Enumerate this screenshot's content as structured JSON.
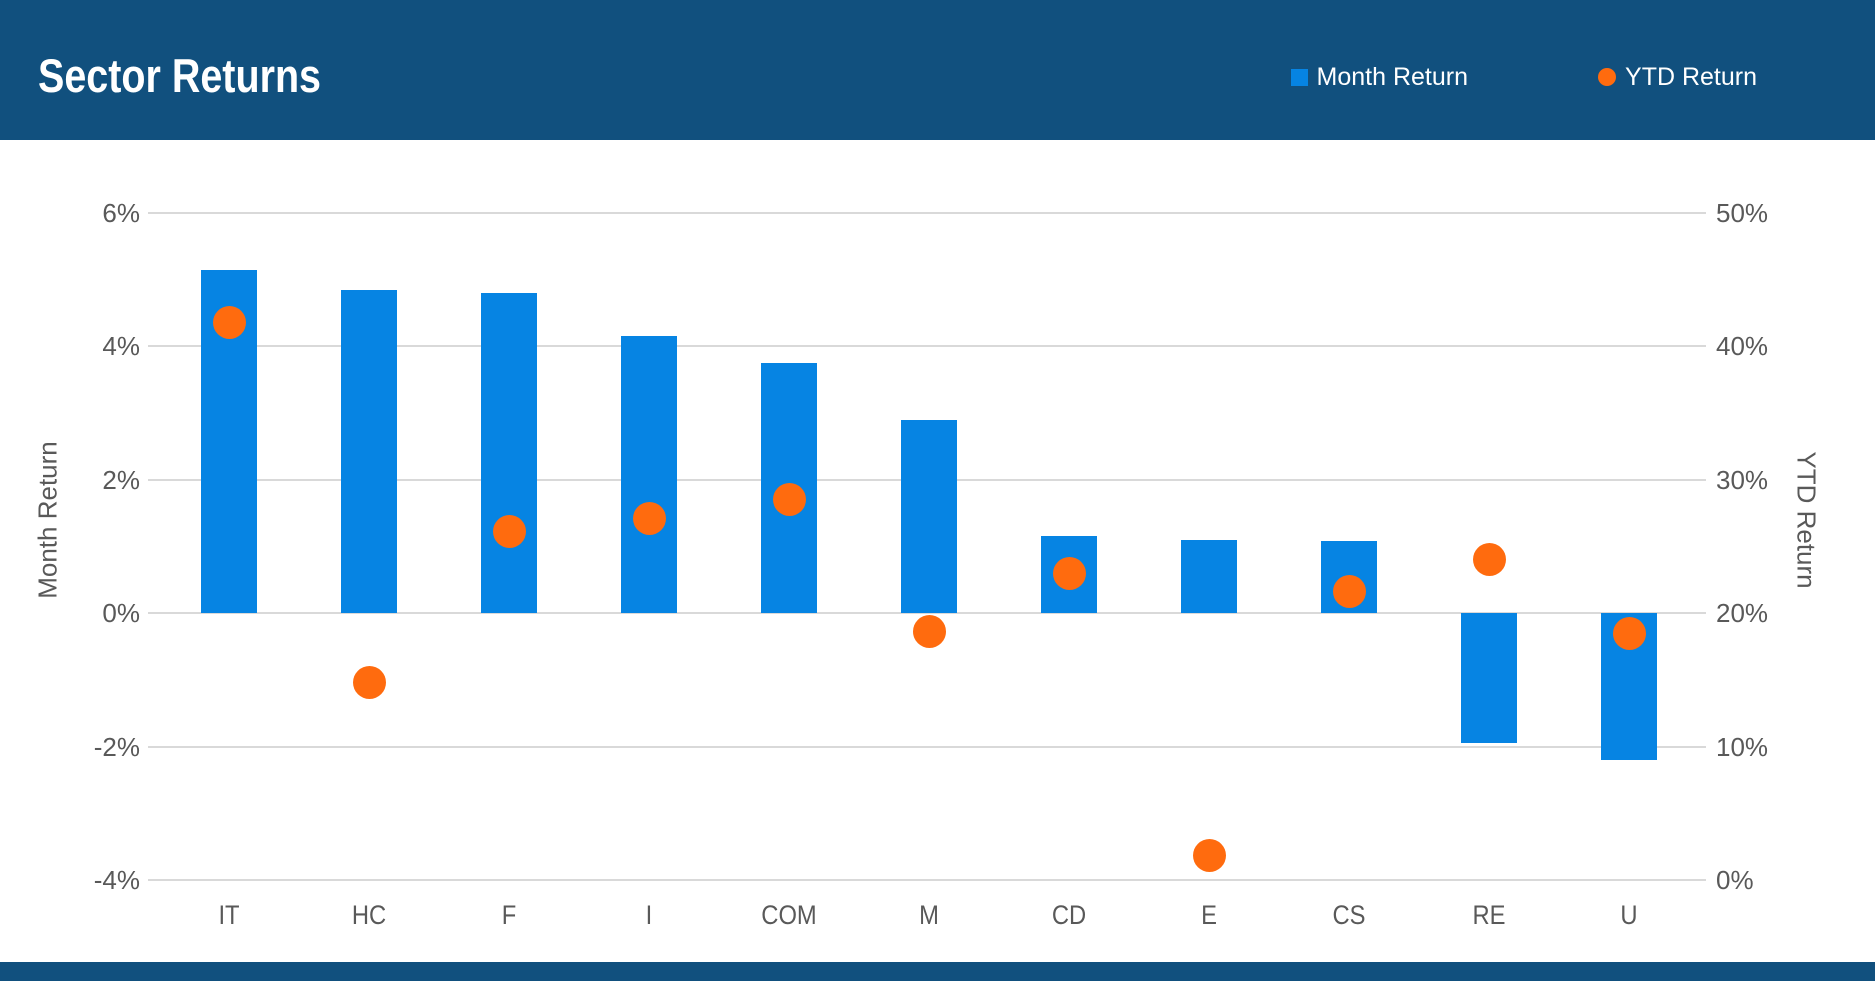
{
  "header": {
    "title": "Sector Returns"
  },
  "colors": {
    "header_bg": "#11507e",
    "footer_bg": "#11507e",
    "bar_blue": "#0684e3",
    "dot_orange": "#ff6b0e",
    "gridline": "#d9d9d9",
    "axis_text": "#595959",
    "title_text": "#ffffff"
  },
  "chart_data": {
    "type": "bar",
    "subtype": "combo-bar-scatter",
    "title": "Sector Returns",
    "categories": [
      "IT",
      "HC",
      "F",
      "I",
      "COM",
      "M",
      "CD",
      "E",
      "CS",
      "RE",
      "U"
    ],
    "series": [
      {
        "name": "Month Return",
        "type": "bar",
        "axis": "left",
        "color": "#0684e3",
        "values": [
          5.15,
          4.85,
          4.8,
          4.15,
          3.75,
          2.9,
          1.15,
          1.1,
          1.08,
          -1.95,
          -2.2
        ]
      },
      {
        "name": "YTD Return",
        "type": "scatter",
        "axis": "right",
        "color": "#ff6b0e",
        "values": [
          41.8,
          14.8,
          26.1,
          27.1,
          28.5,
          18.6,
          23.0,
          1.8,
          21.6,
          24.0,
          18.5
        ]
      }
    ],
    "left_axis": {
      "label": "Month Return",
      "min": -4,
      "max": 6,
      "ticks": [
        "6%",
        "4%",
        "2%",
        "0%",
        "-2%",
        "-4%"
      ]
    },
    "right_axis": {
      "label": "YTD Return",
      "min": 0,
      "max": 50,
      "ticks": [
        "50%",
        "40%",
        "30%",
        "20%",
        "10%",
        "0%"
      ]
    },
    "grid": "horizontal-on",
    "legend_position": "top-right"
  }
}
